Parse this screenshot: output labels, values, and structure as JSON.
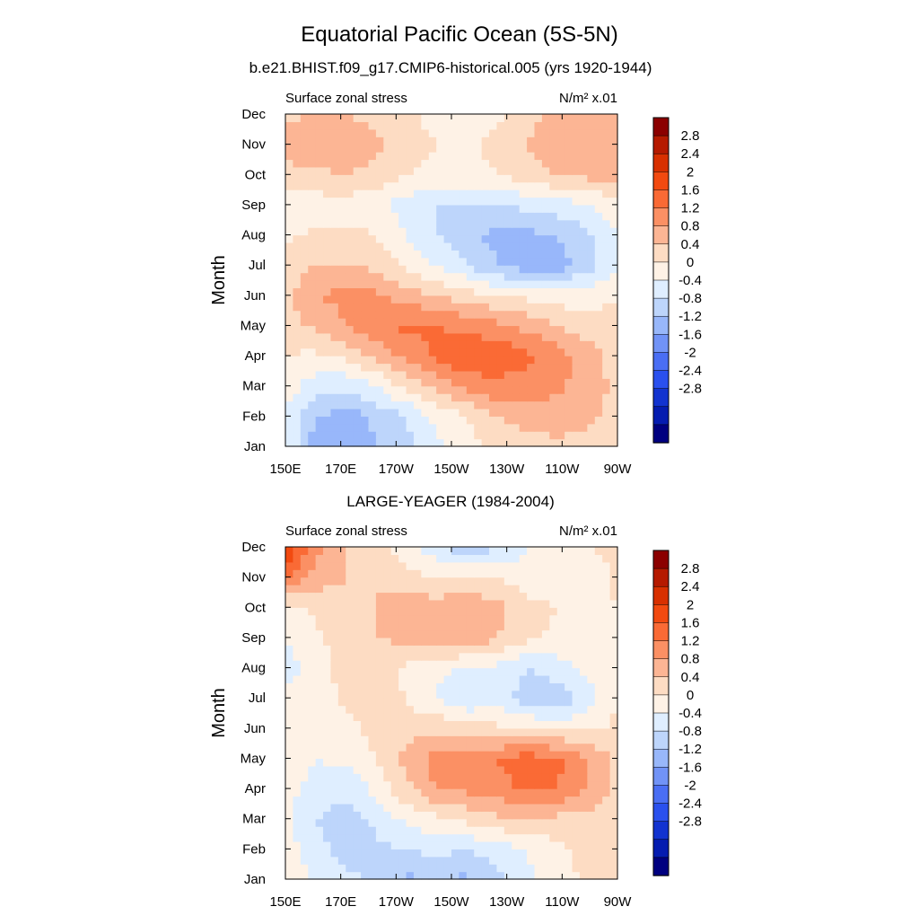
{
  "title": "Equatorial Pacific Ocean (5S-5N)",
  "colorbar": {
    "labels": [
      "2.8",
      "2.4",
      "2",
      "1.6",
      "1.2",
      "0.8",
      "0.4",
      "0",
      "-0.4",
      "-0.8",
      "-1.2",
      "-1.6",
      "-2",
      "-2.4",
      "-2.8"
    ],
    "colors": [
      "#8b0000",
      "#b51a00",
      "#d83000",
      "#f24a10",
      "#fa6a35",
      "#fb9064",
      "#fcb594",
      "#fddcc3",
      "#fef2e6",
      "#dfeeff",
      "#bdd5fb",
      "#98b7fa",
      "#7193f7",
      "#4a6ef4",
      "#2a50ee",
      "#1233d0",
      "#051cb0",
      "#000080"
    ]
  },
  "chart_data": [
    {
      "type": "heatmap",
      "title": "b.e21.BHIST.f09_g17.CMIP6-historical.005 (yrs 1920-1944)",
      "left_label": "Surface zonal stress",
      "right_label": "N/m² x.01",
      "xlabel": "",
      "ylabel": "Month",
      "x_tick_labels": [
        "150E",
        "170E",
        "170W",
        "150W",
        "130W",
        "110W",
        "90W"
      ],
      "y_tick_labels": [
        "Jan",
        "Feb",
        "Mar",
        "Apr",
        "May",
        "Jun",
        "Jul",
        "Aug",
        "Sep",
        "Oct",
        "Nov",
        "Dec"
      ],
      "x_longitudes": [
        150,
        170,
        190,
        210,
        230,
        250,
        270
      ],
      "months": [
        1,
        2,
        3,
        4,
        5,
        6,
        7,
        8,
        9,
        10,
        11,
        12
      ],
      "values": [
        [
          -0.4,
          -1.5,
          -1.5,
          -1.2,
          -0.9,
          -0.5,
          -0.2,
          0.1,
          0.2,
          0.3,
          0.2,
          0.1
        ],
        [
          -0.4,
          -1.2,
          -1.4,
          -1.1,
          -0.8,
          -0.3,
          0.0,
          0.4,
          0.6,
          0.6,
          0.5,
          0.3
        ],
        [
          -0.2,
          -0.6,
          -0.7,
          -0.4,
          0.1,
          0.5,
          0.9,
          1.1,
          1.0,
          0.9,
          0.6,
          0.3
        ],
        [
          0.0,
          -0.1,
          0.1,
          0.5,
          0.9,
          1.3,
          1.6,
          1.5,
          1.3,
          1.0,
          0.6,
          0.2
        ],
        [
          0.2,
          0.5,
          0.8,
          1.1,
          1.3,
          1.2,
          1.1,
          0.9,
          0.7,
          0.4,
          0.2,
          0.1
        ],
        [
          0.3,
          0.8,
          0.9,
          0.9,
          0.6,
          0.4,
          0.2,
          0.0,
          -0.1,
          -0.2,
          -0.2,
          0.0
        ],
        [
          0.1,
          0.4,
          0.4,
          0.3,
          -0.1,
          -0.4,
          -0.8,
          -1.2,
          -1.4,
          -1.4,
          -1.0,
          -0.5
        ],
        [
          -0.1,
          0.1,
          0.1,
          0.0,
          -0.4,
          -0.8,
          -1.1,
          -1.3,
          -1.3,
          -1.2,
          -0.9,
          -0.4
        ],
        [
          -0.3,
          -0.2,
          -0.2,
          -0.3,
          -0.6,
          -0.8,
          -0.8,
          -0.8,
          -0.7,
          -0.6,
          -0.4,
          -0.2
        ],
        [
          0.2,
          0.3,
          0.4,
          0.3,
          0.0,
          -0.1,
          -0.1,
          0.0,
          0.2,
          0.4,
          0.5,
          0.6
        ],
        [
          0.6,
          0.8,
          0.7,
          0.5,
          0.2,
          0.0,
          -0.1,
          0.1,
          0.4,
          0.6,
          0.6,
          0.7
        ],
        [
          0.3,
          0.4,
          0.4,
          0.3,
          0.1,
          -0.2,
          -0.3,
          -0.1,
          0.3,
          0.5,
          0.6,
          0.7
        ]
      ]
    },
    {
      "type": "heatmap",
      "title": "LARGE-YEAGER (1984-2004)",
      "left_label": "Surface zonal stress",
      "right_label": "N/m² x.01",
      "xlabel": "",
      "ylabel": "Month",
      "x_tick_labels": [
        "150E",
        "170E",
        "170W",
        "150W",
        "130W",
        "110W",
        "90W"
      ],
      "y_tick_labels": [
        "Jan",
        "Feb",
        "Mar",
        "Apr",
        "May",
        "Jun",
        "Jul",
        "Aug",
        "Sep",
        "Oct",
        "Nov",
        "Dec"
      ],
      "x_longitudes": [
        150,
        170,
        190,
        210,
        230,
        250,
        270
      ],
      "months": [
        1,
        2,
        3,
        4,
        5,
        6,
        7,
        8,
        9,
        10,
        11,
        12
      ],
      "values": [
        [
          -0.3,
          -0.4,
          -0.6,
          -0.9,
          -1.3,
          -1.0,
          -1.3,
          -0.9,
          -0.5,
          -0.2,
          0.1,
          0.2
        ],
        [
          -0.2,
          -0.6,
          -1.1,
          -0.9,
          -0.8,
          -0.7,
          -0.8,
          -0.6,
          -0.4,
          -0.1,
          0.1,
          0.2
        ],
        [
          -0.3,
          -0.8,
          -1.0,
          -0.7,
          -0.3,
          -0.1,
          0.1,
          0.3,
          0.4,
          0.3,
          0.2,
          0.2
        ],
        [
          -0.2,
          -0.6,
          -0.7,
          -0.3,
          0.3,
          0.8,
          0.9,
          1.0,
          1.3,
          1.2,
          0.8,
          0.3
        ],
        [
          -0.1,
          -0.4,
          -0.3,
          0.0,
          0.5,
          1.0,
          1.1,
          1.2,
          1.4,
          1.3,
          0.8,
          0.3
        ],
        [
          -0.2,
          -0.4,
          -0.1,
          0.1,
          0.2,
          0.3,
          0.2,
          0.1,
          0.0,
          -0.1,
          -0.1,
          0.1
        ],
        [
          -0.3,
          -0.3,
          0.1,
          0.2,
          0.0,
          -0.4,
          -0.8,
          -0.6,
          -1.0,
          -1.1,
          -0.6,
          0.0
        ],
        [
          -0.6,
          -0.2,
          0.2,
          0.2,
          -0.1,
          -0.3,
          -0.5,
          -0.5,
          -0.8,
          -0.6,
          -0.3,
          0.0
        ],
        [
          -0.4,
          -0.1,
          0.2,
          0.4,
          0.5,
          0.7,
          0.8,
          0.4,
          0.1,
          -0.1,
          -0.3,
          0.0
        ],
        [
          -0.2,
          0.1,
          0.3,
          0.4,
          0.6,
          0.6,
          0.7,
          0.5,
          0.2,
          0.0,
          -0.2,
          0.0
        ],
        [
          1.4,
          0.6,
          0.4,
          0.4,
          0.2,
          0.0,
          0.1,
          0.0,
          -0.3,
          -0.3,
          -0.3,
          0.1
        ],
        [
          1.9,
          1.0,
          0.4,
          0.3,
          -0.3,
          -0.7,
          -1.2,
          -0.8,
          -0.4,
          -0.2,
          0.0,
          0.1
        ]
      ]
    }
  ]
}
